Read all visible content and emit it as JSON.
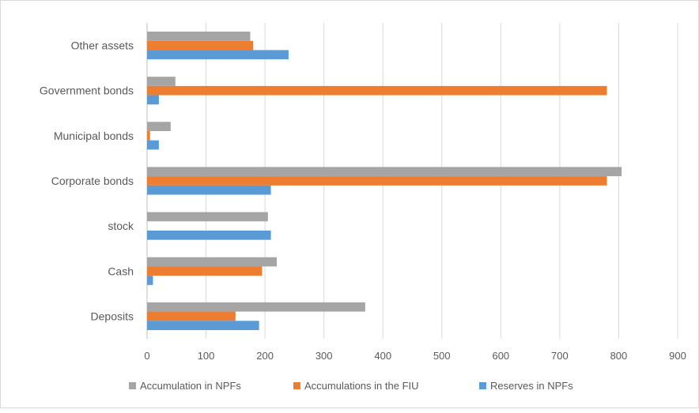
{
  "chart_data": {
    "type": "bar",
    "orientation": "horizontal",
    "title": "",
    "xlabel": "",
    "ylabel": "",
    "categories": [
      "Deposits",
      "Cash",
      "stock",
      "Corporate bonds",
      "Municipal bonds",
      "Government bonds",
      "Other assets"
    ],
    "xlim": [
      0,
      900
    ],
    "xticks": [
      0,
      100,
      200,
      300,
      400,
      500,
      600,
      700,
      800,
      900
    ],
    "grid": "vertical",
    "legend_position": "bottom",
    "series": [
      {
        "name": "Accumulation in NPFs",
        "color": "#a5a5a5",
        "values": [
          370,
          220,
          205,
          805,
          40,
          48,
          175
        ]
      },
      {
        "name": "Accumulations in the FIU",
        "color": "#ed7d31",
        "values": [
          150,
          195,
          0,
          780,
          5,
          780,
          180
        ]
      },
      {
        "name": "Reserves in NPFs",
        "color": "#5b9bd5",
        "values": [
          190,
          10,
          210,
          210,
          20,
          20,
          240
        ]
      }
    ]
  }
}
